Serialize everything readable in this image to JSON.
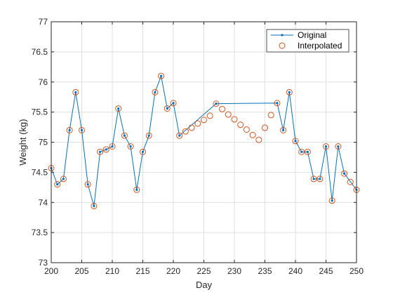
{
  "chart_data": {
    "type": "line",
    "xlabel": "Day",
    "ylabel": "Weight (kg)",
    "xlim": [
      200,
      250
    ],
    "ylim": [
      73,
      77
    ],
    "xticks": [
      200,
      205,
      210,
      215,
      220,
      225,
      230,
      235,
      240,
      245,
      250
    ],
    "yticks": [
      73,
      73.5,
      74,
      74.5,
      75,
      75.5,
      76,
      76.5,
      77
    ],
    "ytick_labels": [
      "73",
      "73.5",
      "74",
      "74.5",
      "75",
      "75.5",
      "76",
      "76.5",
      "77"
    ],
    "grid": true,
    "legend_position": "top-right",
    "series": [
      {
        "name": "Original",
        "style": "line-with-dot-markers",
        "color": "#0072BD",
        "x": [
          200,
          201,
          202,
          203,
          204,
          205,
          206,
          207,
          208,
          209,
          210,
          211,
          212,
          213,
          214,
          215,
          216,
          217,
          218,
          219,
          220,
          221,
          227,
          237,
          238,
          239,
          240,
          241,
          242,
          243,
          244,
          245,
          246,
          247,
          248,
          250
        ],
        "y": [
          74.57,
          74.3,
          74.39,
          75.2,
          75.83,
          75.2,
          74.3,
          73.94,
          74.84,
          74.88,
          74.93,
          75.56,
          75.11,
          74.93,
          74.21,
          74.84,
          75.11,
          75.83,
          76.1,
          75.56,
          75.65,
          75.11,
          75.64,
          75.65,
          75.2,
          75.83,
          75.02,
          74.84,
          74.84,
          74.39,
          74.39,
          74.93,
          74.03,
          74.93,
          74.48,
          74.21
        ]
      },
      {
        "name": "Interpolated",
        "style": "open-circle-markers",
        "color": "#D95319",
        "x": [
          200,
          201,
          202,
          203,
          204,
          205,
          206,
          207,
          208,
          209,
          210,
          211,
          212,
          213,
          214,
          215,
          216,
          217,
          218,
          219,
          220,
          221,
          222,
          223,
          224,
          225,
          226,
          227,
          228,
          229,
          230,
          231,
          232,
          233,
          234,
          235,
          236,
          237,
          238,
          239,
          240,
          241,
          242,
          243,
          244,
          245,
          246,
          247,
          248,
          249,
          250
        ],
        "y": [
          74.57,
          74.3,
          74.39,
          75.2,
          75.83,
          75.2,
          74.3,
          73.94,
          74.84,
          74.88,
          74.93,
          75.56,
          75.11,
          74.93,
          74.21,
          74.84,
          75.11,
          75.83,
          76.1,
          75.56,
          75.65,
          75.11,
          75.18,
          75.24,
          75.31,
          75.37,
          75.44,
          75.64,
          75.55,
          75.46,
          75.38,
          75.29,
          75.21,
          75.12,
          75.04,
          75.24,
          75.45,
          75.65,
          75.2,
          75.83,
          75.02,
          74.84,
          74.84,
          74.39,
          74.39,
          74.93,
          74.03,
          74.93,
          74.48,
          74.34,
          74.21
        ]
      }
    ]
  }
}
